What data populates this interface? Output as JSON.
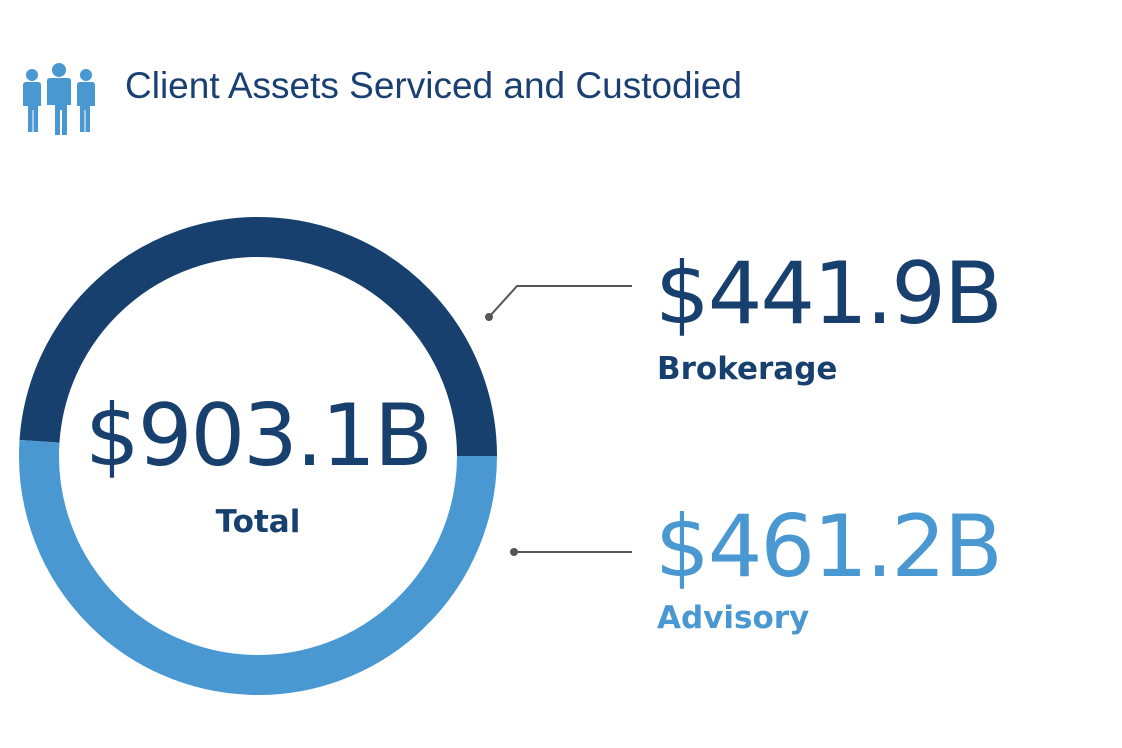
{
  "header": {
    "title": "Client Assets Serviced and Custodied",
    "icon": "people-group-icon"
  },
  "colors": {
    "brokerage": "#17406f",
    "advisory": "#4a98d1",
    "title": "#1a3f73",
    "connector": "#555555"
  },
  "chart_data": {
    "type": "pie",
    "style": "donut",
    "title": "Client Assets Serviced and Custodied",
    "unit": "$B",
    "total": {
      "display": "$903.1B",
      "label": "Total",
      "value": 903.1
    },
    "categories": [
      "Brokerage",
      "Advisory"
    ],
    "values": [
      441.9,
      461.2
    ],
    "segments": [
      {
        "label": "Brokerage",
        "display": "$441.9B",
        "value": 441.9,
        "color": "#17406f"
      },
      {
        "label": "Advisory",
        "display": "$461.2B",
        "value": 461.2,
        "color": "#4a98d1"
      }
    ]
  }
}
